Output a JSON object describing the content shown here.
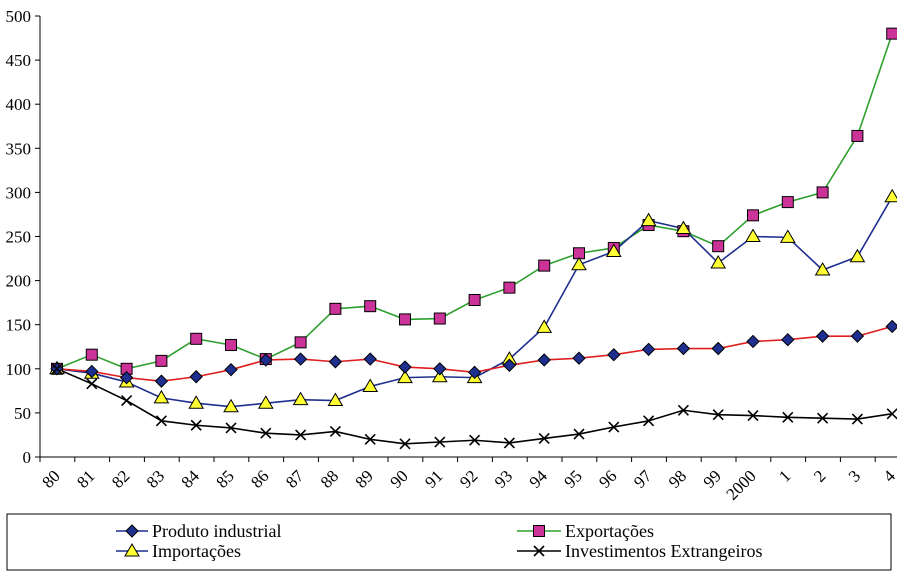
{
  "chart_data": {
    "type": "line",
    "title": "",
    "xlabel": "",
    "ylabel": "",
    "ylim": [
      0,
      500
    ],
    "yticks": [
      0,
      50,
      100,
      150,
      200,
      250,
      300,
      350,
      400,
      450,
      500
    ],
    "grid": false,
    "legend_position": "bottom",
    "categories": [
      "80",
      "81",
      "82",
      "83",
      "84",
      "85",
      "86",
      "87",
      "88",
      "89",
      "90",
      "91",
      "92",
      "93",
      "94",
      "95",
      "96",
      "97",
      "98",
      "99",
      "2000",
      "1",
      "2",
      "3",
      "4"
    ],
    "series": [
      {
        "name": "Produto industrial",
        "color": "#1f2f8f",
        "marker": "diamond",
        "marker_fill": "#1f2f8f",
        "values": [
          100,
          97,
          90,
          86,
          91,
          99,
          110,
          111,
          108,
          111,
          102,
          100,
          96,
          104,
          110,
          112,
          116,
          122,
          123,
          123,
          131,
          133,
          137,
          137,
          148
        ]
      },
      {
        "name": "Exportações",
        "color": "#2fa02f",
        "marker": "square",
        "marker_fill": "#cc3399",
        "values": [
          100,
          116,
          100,
          109,
          134,
          127,
          111,
          130,
          168,
          171,
          156,
          157,
          178,
          192,
          217,
          231,
          237,
          263,
          256,
          239,
          274,
          289,
          300,
          364,
          480
        ]
      },
      {
        "name": "Importações",
        "color": "#1f2f8f",
        "marker": "triangle",
        "marker_fill": "#ffff33",
        "values": [
          100,
          95,
          85,
          67,
          61,
          57,
          61,
          65,
          64,
          80,
          90,
          91,
          90,
          111,
          147,
          218,
          233,
          268,
          259,
          220,
          250,
          249,
          212,
          227,
          295
        ]
      },
      {
        "name": "Investimentos Extrangeiros",
        "color": "#000000",
        "marker": "x",
        "marker_fill": "none",
        "values": [
          100,
          83,
          64,
          41,
          36,
          33,
          27,
          25,
          29,
          20,
          15,
          17,
          19,
          16,
          21,
          26,
          34,
          41,
          53,
          48,
          47,
          45,
          44,
          43,
          49
        ]
      }
    ],
    "connector_colors": {
      "Produto industrial": "#e02020",
      "Importações": "#1f2f8f"
    }
  }
}
